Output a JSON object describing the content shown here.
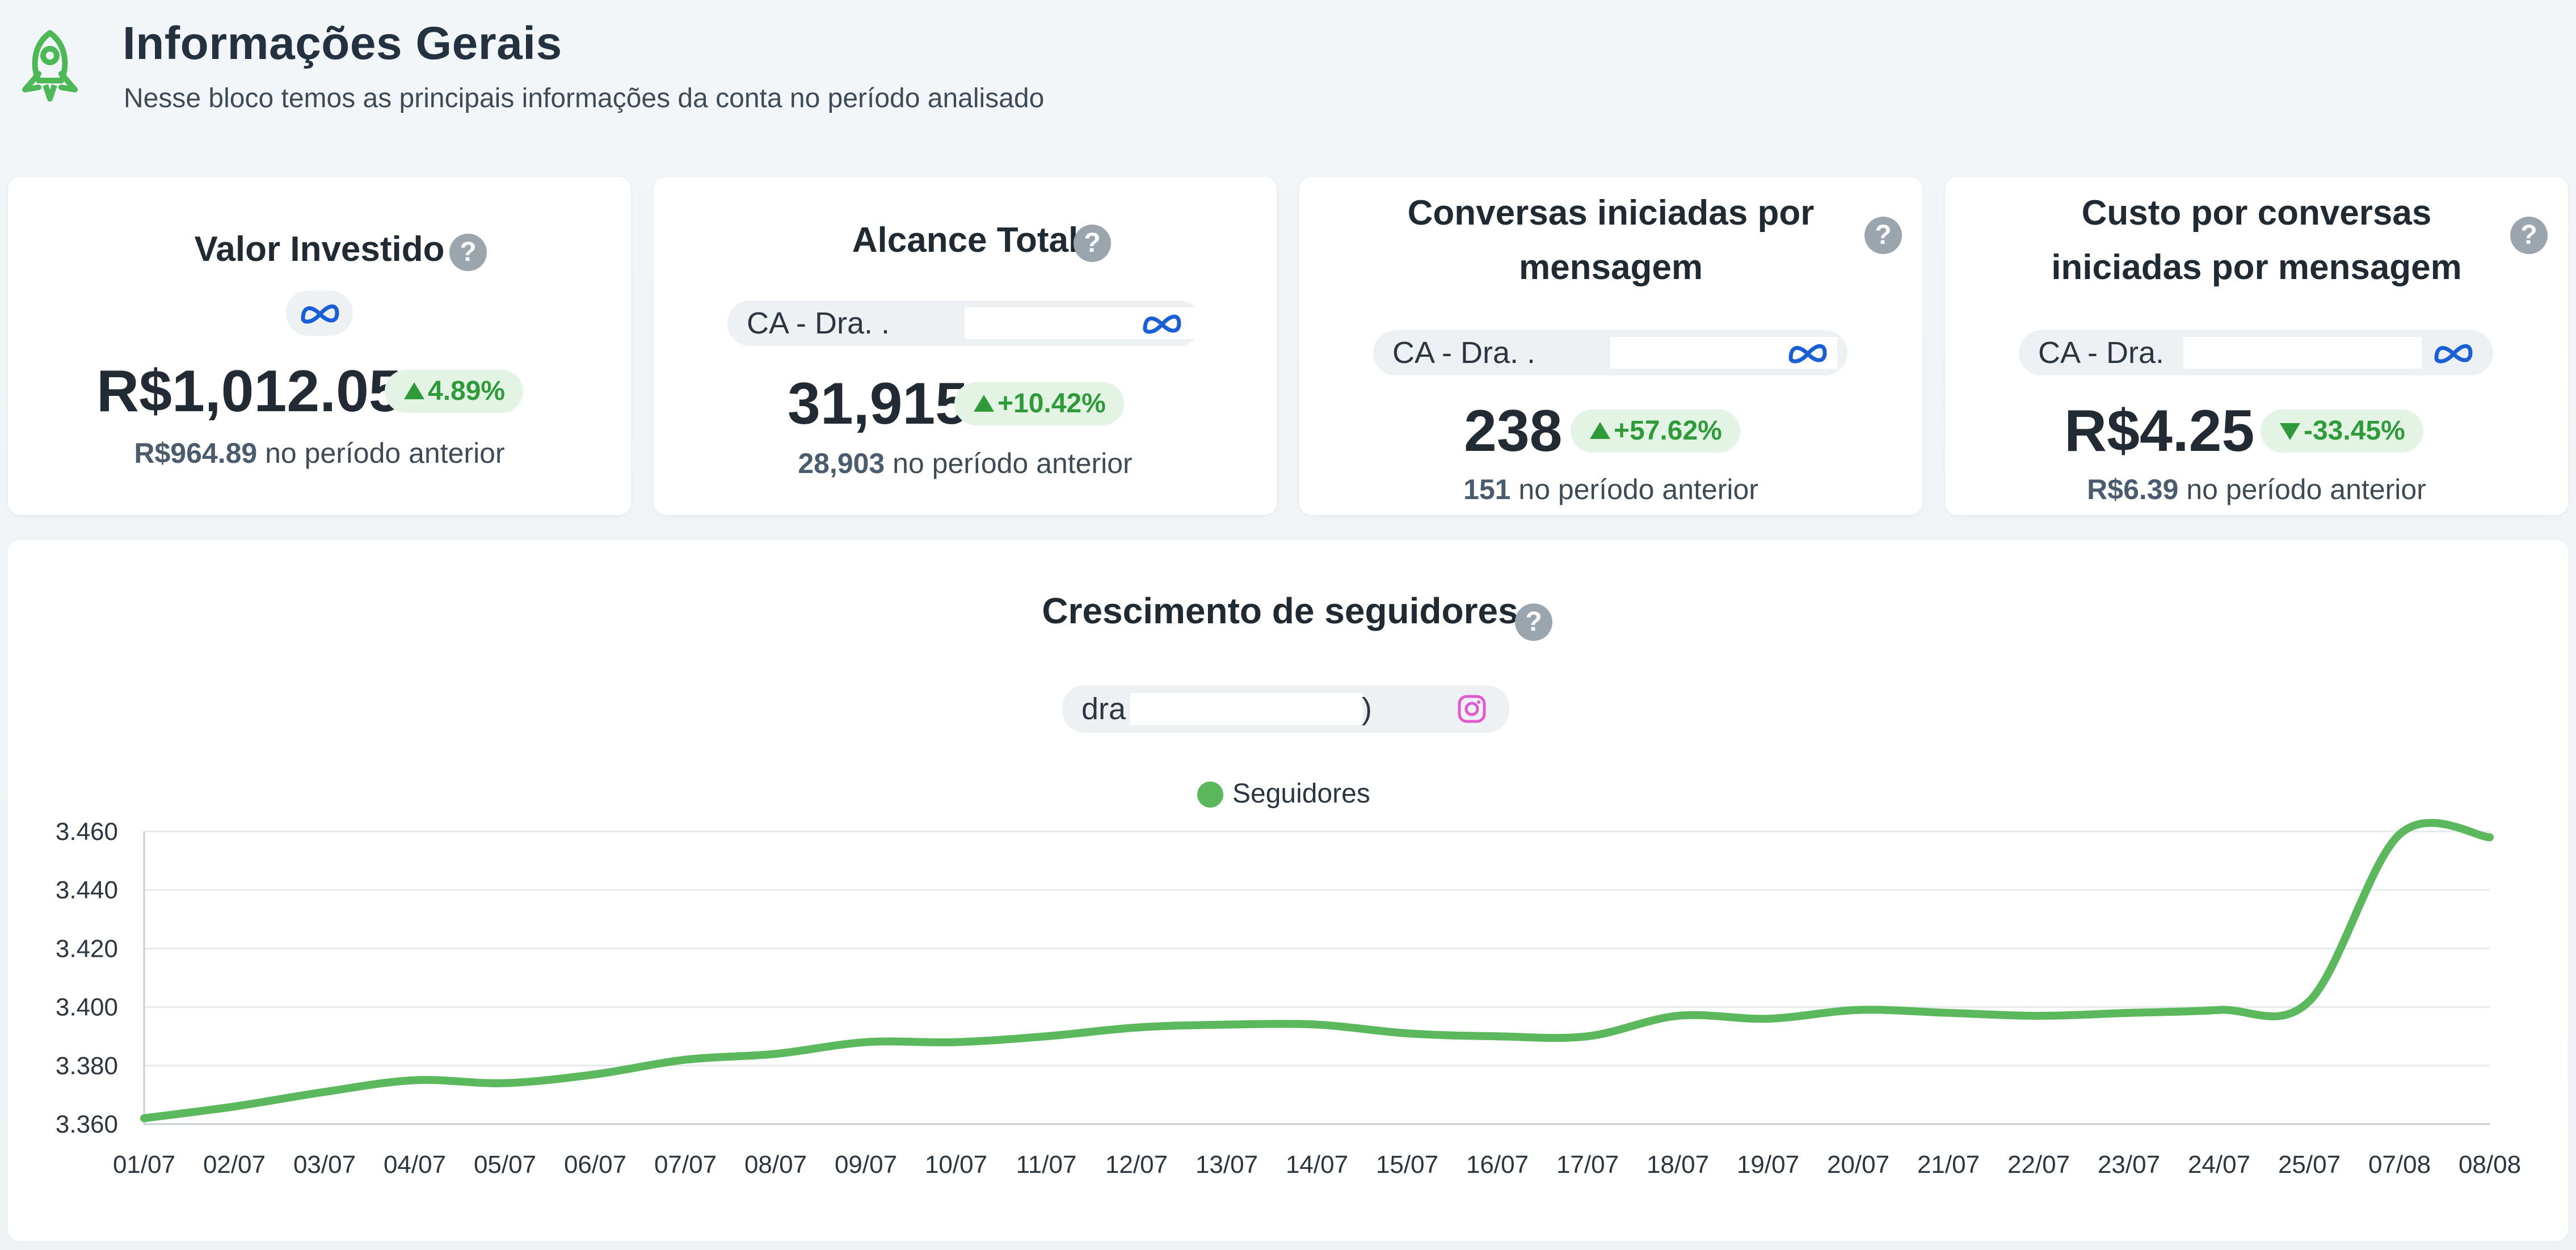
{
  "header": {
    "title": "Informações Gerais",
    "subtitle": "Nesse bloco temos as principais informações da conta no período analisado",
    "icon": "rocket-icon"
  },
  "cards": [
    {
      "title": "Valor Investido",
      "account_label": "",
      "value": "R$1,012.05",
      "delta": "4.89%",
      "delta_direction": "up",
      "previous_value": "R$964.89",
      "previous_suffix": "no período anterior",
      "source_icon": "meta-icon"
    },
    {
      "title": "Alcance Total",
      "account_label": "CA - Dra. .",
      "value": "31,915",
      "delta": "+10.42%",
      "delta_direction": "up",
      "previous_value": "28,903",
      "previous_suffix": "no período anterior",
      "source_icon": "meta-icon"
    },
    {
      "title_line1": "Conversas iniciadas por",
      "title_line2": "mensagem",
      "account_label": "CA - Dra. .",
      "value": "238",
      "delta": "+57.62%",
      "delta_direction": "up",
      "previous_value": "151",
      "previous_suffix": "no período anterior",
      "source_icon": "meta-icon"
    },
    {
      "title_line1": "Custo por conversas",
      "title_line2": "iniciadas por mensagem",
      "account_label": "CA - Dra.",
      "value": "R$4.25",
      "delta": "-33.45%",
      "delta_direction": "down",
      "previous_value": "R$6.39",
      "previous_suffix": "no período anterior",
      "source_icon": "meta-icon"
    }
  ],
  "help_glyph": "?",
  "followers": {
    "title": "Crescimento de seguidores",
    "account_label": "dra",
    "account_tail": ")",
    "source_icon": "instagram-icon"
  },
  "colors": {
    "accent_green": "#5cb85c",
    "badge_text": "#2e9a3a",
    "badge_bg": "#e3f4e4",
    "meta_blue": "#1a5fd6",
    "instagram_pink": "#e05bd0"
  },
  "chart_data": {
    "type": "line",
    "title": "Crescimento de seguidores",
    "x": [
      "01/07",
      "02/07",
      "03/07",
      "04/07",
      "05/07",
      "06/07",
      "07/07",
      "08/07",
      "09/07",
      "10/07",
      "11/07",
      "12/07",
      "13/07",
      "14/07",
      "15/07",
      "16/07",
      "17/07",
      "18/07",
      "19/07",
      "20/07",
      "21/07",
      "22/07",
      "23/07",
      "24/07",
      "25/07",
      "07/08",
      "08/08"
    ],
    "series": [
      {
        "name": "Seguidores",
        "values": [
          3362,
          3366,
          3371,
          3375,
          3374,
          3377,
          3382,
          3384,
          3388,
          3388,
          3390,
          3393,
          3394,
          3394,
          3391,
          3390,
          3390,
          3397,
          3396,
          3399,
          3398,
          3397,
          3398,
          3399,
          3402,
          3459,
          3458
        ]
      }
    ],
    "yticks": [
      "3.360",
      "3.380",
      "3.400",
      "3.420",
      "3.440",
      "3.460"
    ],
    "ylim": [
      3360,
      3460
    ],
    "grid": true,
    "legend": "top-center"
  }
}
